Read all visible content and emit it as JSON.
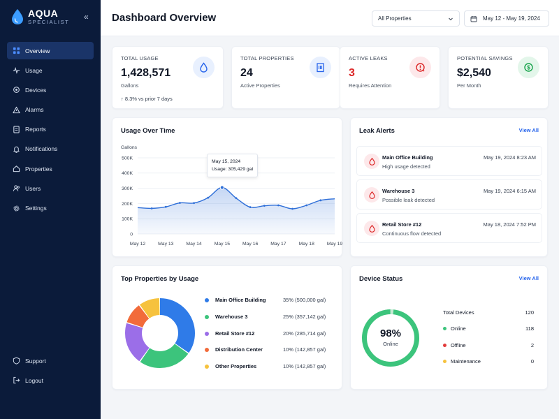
{
  "brand": {
    "name": "AQUA",
    "tagline": "SPECIALIST"
  },
  "sidebar": {
    "items": [
      {
        "label": "Overview",
        "icon": "grid-icon",
        "active": true
      },
      {
        "label": "Usage",
        "icon": "activity-icon"
      },
      {
        "label": "Devices",
        "icon": "device-icon"
      },
      {
        "label": "Alarms",
        "icon": "warning-icon"
      },
      {
        "label": "Reports",
        "icon": "report-icon"
      },
      {
        "label": "Notifications",
        "icon": "bell-icon"
      },
      {
        "label": "Properties",
        "icon": "home-icon"
      },
      {
        "label": "Users",
        "icon": "users-icon"
      },
      {
        "label": "Settings",
        "icon": "gear-icon"
      }
    ],
    "bottom": [
      {
        "label": "Support",
        "icon": "support-icon"
      },
      {
        "label": "Logout",
        "icon": "logout-icon"
      }
    ]
  },
  "header": {
    "title": "Dashboard Overview",
    "property_filter": "All Properties",
    "date_range": "May 12 - May 19, 2024"
  },
  "stats": [
    {
      "label": "TOTAL USAGE",
      "value": "1,428,571",
      "sub": "Gallons",
      "trend": "↑ 8.3% vs prior 7 days",
      "icon": "water-drop-icon",
      "color": "#2563eb",
      "bg": "#e8f0fe"
    },
    {
      "label": "TOTAL PROPERTIES",
      "value": "24",
      "sub": "Active Properties",
      "icon": "building-icon",
      "color": "#2563eb",
      "bg": "#e8f0fe"
    },
    {
      "label": "ACTIVE LEAKS",
      "value": "3",
      "sub": "Requires Attention",
      "icon": "leak-alert-icon",
      "color": "#dc2626",
      "bg": "#fde8ea"
    },
    {
      "label": "POTENTIAL SAVINGS",
      "value": "$2,540",
      "sub": "Per Month",
      "icon": "dollar-icon",
      "color": "#16a34a",
      "bg": "#e3f6ea"
    }
  ],
  "usage_chart": {
    "title": "Usage Over Time",
    "tooltip": {
      "date": "May 15, 2024",
      "text": "Usage: 305,429 gal"
    }
  },
  "chart_data": {
    "type": "area",
    "ylabel": "Gallons",
    "yticks": [
      "0",
      "100K",
      "200K",
      "300K",
      "400K",
      "500K"
    ],
    "ylim": [
      0,
      500000
    ],
    "categories": [
      "May 12",
      "May 13",
      "May 14",
      "May 15",
      "May 16",
      "May 17",
      "May 18",
      "May 19"
    ],
    "x": [
      12,
      12.5,
      13,
      13.5,
      14,
      14.5,
      15,
      15.5,
      16,
      16.5,
      17,
      17.5,
      18,
      18.5,
      19
    ],
    "values": [
      173000,
      168000,
      178000,
      204000,
      203000,
      238000,
      305000,
      235000,
      176000,
      185000,
      188000,
      165000,
      188000,
      221000,
      231000
    ],
    "color": "#2f6fd8",
    "grid": true
  },
  "alerts": {
    "title": "Leak Alerts",
    "view_all": "View All",
    "items": [
      {
        "name": "Main Office Building",
        "desc": "High usage detected",
        "time": "May 19, 2024 8:23 AM"
      },
      {
        "name": "Warehouse 3",
        "desc": "Possible leak detected",
        "time": "May 19, 2024 6:15 AM"
      },
      {
        "name": "Retail Store #12",
        "desc": "Continuous flow detected",
        "time": "May 18, 2024 7:52 PM"
      }
    ]
  },
  "top_properties": {
    "title": "Top Properties by Usage",
    "items": [
      {
        "name": "Main Office Building",
        "value": "35%  (500,000 gal)",
        "pct": 35,
        "color": "#2f7be8"
      },
      {
        "name": "Warehouse 3",
        "value": "25%  (357,142 gal)",
        "pct": 25,
        "color": "#3cc47c"
      },
      {
        "name": "Retail Store #12",
        "value": "20%  (285,714 gal)",
        "pct": 20,
        "color": "#9b6ee8"
      },
      {
        "name": "Distribution Center",
        "value": "10%  (142,857 gal)",
        "pct": 10,
        "color": "#f26b3a"
      },
      {
        "name": "Other Properties",
        "value": "10%  (142,857 gal)",
        "pct": 10,
        "color": "#f6c23e"
      }
    ]
  },
  "device_status": {
    "title": "Device Status",
    "view_all": "View All",
    "percent": "98%",
    "percent_label": "Online",
    "online_fraction": 0.98,
    "total_label": "Total Devices",
    "total": "120",
    "rows": [
      {
        "label": "Online",
        "value": "118",
        "color": "#3cc47c"
      },
      {
        "label": "Offline",
        "value": "2",
        "color": "#e23b3b"
      },
      {
        "label": "Maintenance",
        "value": "0",
        "color": "#f6c23e"
      }
    ],
    "colors": {
      "online": "#3cc47c",
      "other": "#c6ead4"
    }
  }
}
